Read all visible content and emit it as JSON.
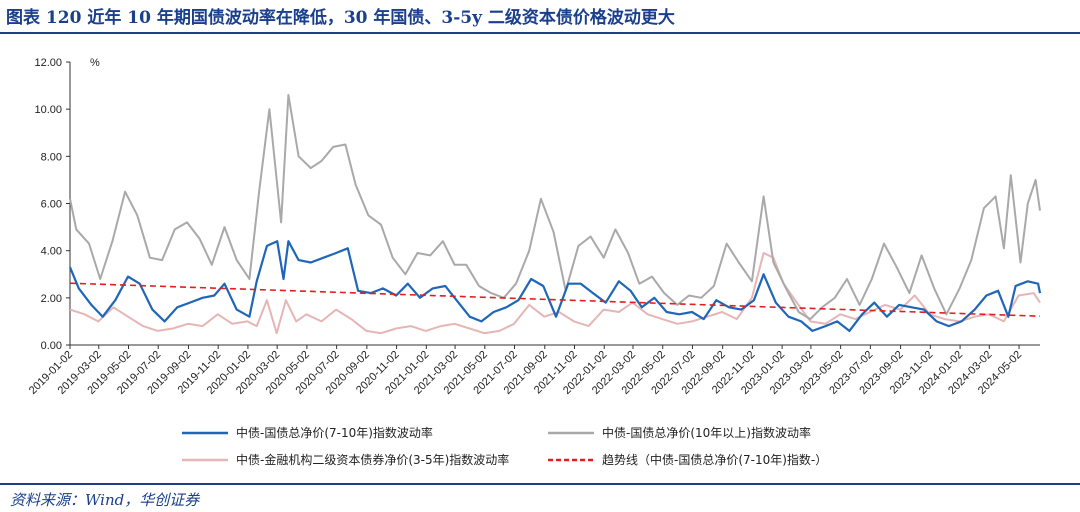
{
  "title": "图表 120    近年 10 年期国债波动率在降低，30 年国债、3-5y 二级资本债价格波动更大",
  "source": "资料来源：Wind，华创证券",
  "colors": {
    "blue": "#1f66b9",
    "gray": "#a9a9a9",
    "pink": "#e6b5b5",
    "trend": "#e02020",
    "accent": "#1f3f86"
  },
  "chart_data": {
    "type": "line",
    "title": "近年 10 年期国债波动率在降低，30 年国债、3-5y 二级资本债价格波动更大",
    "ylabel": "%",
    "ylim": [
      0,
      12
    ],
    "yticks": [
      "0.00",
      "2.00",
      "4.00",
      "6.00",
      "8.00",
      "10.00",
      "12.00"
    ],
    "x_range": [
      "2019-01-02",
      "2024-06-14"
    ],
    "categories": [
      "2019-01-02",
      "2019-03-02",
      "2019-05-02",
      "2019-07-02",
      "2019-09-02",
      "2019-11-02",
      "2020-01-02",
      "2020-03-02",
      "2020-05-02",
      "2020-07-02",
      "2020-09-02",
      "2020-11-02",
      "2021-01-02",
      "2021-03-02",
      "2021-05-02",
      "2021-07-02",
      "2021-09-02",
      "2021-11-02",
      "2022-01-02",
      "2022-03-02",
      "2022-05-02",
      "2022-07-02",
      "2022-09-02",
      "2022-11-02",
      "2023-01-02",
      "2023-03-02",
      "2023-05-02",
      "2023-07-02",
      "2023-09-02",
      "2023-11-02",
      "2024-01-02",
      "2024-03-02",
      "2024-05-02"
    ],
    "legend_position": "bottom",
    "grid": false,
    "series": [
      {
        "name": "中债-国债总净价(7-10年)指数波动率",
        "style": "solid",
        "color": "#1f66b9",
        "points": [
          [
            "2019-01-02",
            3.3
          ],
          [
            "2019-01-20",
            2.4
          ],
          [
            "2019-02-15",
            1.7
          ],
          [
            "2019-03-10",
            1.2
          ],
          [
            "2019-04-05",
            1.9
          ],
          [
            "2019-05-01",
            2.9
          ],
          [
            "2019-05-25",
            2.6
          ],
          [
            "2019-06-20",
            1.5
          ],
          [
            "2019-07-15",
            1.0
          ],
          [
            "2019-08-10",
            1.6
          ],
          [
            "2019-09-05",
            1.8
          ],
          [
            "2019-10-01",
            2.0
          ],
          [
            "2019-10-25",
            2.1
          ],
          [
            "2019-11-15",
            2.6
          ],
          [
            "2019-12-10",
            1.5
          ],
          [
            "2020-01-05",
            1.2
          ],
          [
            "2020-01-20",
            2.7
          ],
          [
            "2020-02-10",
            4.2
          ],
          [
            "2020-03-02",
            4.4
          ],
          [
            "2020-03-15",
            2.8
          ],
          [
            "2020-03-25",
            4.4
          ],
          [
            "2020-04-15",
            3.6
          ],
          [
            "2020-05-10",
            3.5
          ],
          [
            "2020-06-05",
            3.7
          ],
          [
            "2020-07-01",
            3.9
          ],
          [
            "2020-07-25",
            4.1
          ],
          [
            "2020-08-15",
            2.3
          ],
          [
            "2020-09-10",
            2.2
          ],
          [
            "2020-10-05",
            2.4
          ],
          [
            "2020-11-01",
            2.1
          ],
          [
            "2020-11-25",
            2.6
          ],
          [
            "2020-12-20",
            2.0
          ],
          [
            "2021-01-15",
            2.4
          ],
          [
            "2021-02-10",
            2.5
          ],
          [
            "2021-03-05",
            1.9
          ],
          [
            "2021-04-01",
            1.2
          ],
          [
            "2021-04-25",
            1.0
          ],
          [
            "2021-05-20",
            1.4
          ],
          [
            "2021-06-15",
            1.6
          ],
          [
            "2021-07-10",
            1.9
          ],
          [
            "2021-08-05",
            2.8
          ],
          [
            "2021-08-30",
            2.5
          ],
          [
            "2021-09-25",
            1.2
          ],
          [
            "2021-10-20",
            2.6
          ],
          [
            "2021-11-15",
            2.6
          ],
          [
            "2021-12-10",
            2.2
          ],
          [
            "2022-01-05",
            1.8
          ],
          [
            "2022-02-01",
            2.7
          ],
          [
            "2022-02-25",
            2.3
          ],
          [
            "2022-03-20",
            1.6
          ],
          [
            "2022-04-15",
            2.0
          ],
          [
            "2022-05-10",
            1.4
          ],
          [
            "2022-06-05",
            1.3
          ],
          [
            "2022-07-01",
            1.4
          ],
          [
            "2022-07-25",
            1.1
          ],
          [
            "2022-08-20",
            1.9
          ],
          [
            "2022-09-15",
            1.6
          ],
          [
            "2022-10-10",
            1.5
          ],
          [
            "2022-11-05",
            1.9
          ],
          [
            "2022-11-25",
            3.0
          ],
          [
            "2022-12-20",
            1.8
          ],
          [
            "2023-01-15",
            1.2
          ],
          [
            "2023-02-10",
            1.0
          ],
          [
            "2023-03-05",
            0.6
          ],
          [
            "2023-04-01",
            0.8
          ],
          [
            "2023-04-25",
            1.0
          ],
          [
            "2023-05-20",
            0.6
          ],
          [
            "2023-06-15",
            1.3
          ],
          [
            "2023-07-10",
            1.8
          ],
          [
            "2023-08-05",
            1.2
          ],
          [
            "2023-08-30",
            1.7
          ],
          [
            "2023-09-25",
            1.6
          ],
          [
            "2023-10-20",
            1.5
          ],
          [
            "2023-11-15",
            1.0
          ],
          [
            "2023-12-10",
            0.8
          ],
          [
            "2024-01-05",
            1.0
          ],
          [
            "2024-02-01",
            1.5
          ],
          [
            "2024-02-25",
            2.1
          ],
          [
            "2024-03-20",
            2.3
          ],
          [
            "2024-04-10",
            1.2
          ],
          [
            "2024-04-25",
            2.5
          ],
          [
            "2024-05-20",
            2.7
          ],
          [
            "2024-06-10",
            2.6
          ],
          [
            "2024-06-14",
            2.2
          ]
        ]
      },
      {
        "name": "中债-国债总净价(10年以上)指数波动率",
        "style": "solid",
        "color": "#a9a9a9",
        "points": [
          [
            "2019-01-02",
            6.2
          ],
          [
            "2019-01-15",
            4.9
          ],
          [
            "2019-02-10",
            4.3
          ],
          [
            "2019-03-05",
            2.8
          ],
          [
            "2019-03-30",
            4.4
          ],
          [
            "2019-04-25",
            6.5
          ],
          [
            "2019-05-20",
            5.5
          ],
          [
            "2019-06-15",
            3.7
          ],
          [
            "2019-07-10",
            3.6
          ],
          [
            "2019-08-05",
            4.9
          ],
          [
            "2019-08-30",
            5.2
          ],
          [
            "2019-09-25",
            4.5
          ],
          [
            "2019-10-20",
            3.4
          ],
          [
            "2019-11-15",
            5.0
          ],
          [
            "2019-12-10",
            3.6
          ],
          [
            "2020-01-05",
            2.8
          ],
          [
            "2020-01-25",
            6.5
          ],
          [
            "2020-02-15",
            10.0
          ],
          [
            "2020-03-01",
            7.0
          ],
          [
            "2020-03-10",
            5.2
          ],
          [
            "2020-03-25",
            10.6
          ],
          [
            "2020-04-15",
            8.0
          ],
          [
            "2020-05-10",
            7.5
          ],
          [
            "2020-06-01",
            7.8
          ],
          [
            "2020-06-25",
            8.4
          ],
          [
            "2020-07-20",
            8.5
          ],
          [
            "2020-08-10",
            6.8
          ],
          [
            "2020-09-05",
            5.5
          ],
          [
            "2020-10-01",
            5.1
          ],
          [
            "2020-10-25",
            3.7
          ],
          [
            "2020-11-20",
            3.0
          ],
          [
            "2020-12-15",
            3.9
          ],
          [
            "2021-01-10",
            3.8
          ],
          [
            "2021-02-05",
            4.4
          ],
          [
            "2021-03-01",
            3.4
          ],
          [
            "2021-03-25",
            3.4
          ],
          [
            "2021-04-20",
            2.5
          ],
          [
            "2021-05-15",
            2.2
          ],
          [
            "2021-06-10",
            2.0
          ],
          [
            "2021-07-05",
            2.6
          ],
          [
            "2021-08-01",
            4.0
          ],
          [
            "2021-08-25",
            6.2
          ],
          [
            "2021-09-20",
            4.8
          ],
          [
            "2021-10-15",
            2.3
          ],
          [
            "2021-11-10",
            4.2
          ],
          [
            "2021-12-05",
            4.6
          ],
          [
            "2022-01-01",
            3.7
          ],
          [
            "2022-01-25",
            4.9
          ],
          [
            "2022-02-20",
            3.9
          ],
          [
            "2022-03-15",
            2.6
          ],
          [
            "2022-04-10",
            2.9
          ],
          [
            "2022-05-05",
            2.2
          ],
          [
            "2022-06-01",
            1.7
          ],
          [
            "2022-06-25",
            2.1
          ],
          [
            "2022-07-20",
            2.0
          ],
          [
            "2022-08-15",
            2.5
          ],
          [
            "2022-09-10",
            4.3
          ],
          [
            "2022-10-05",
            3.5
          ],
          [
            "2022-11-01",
            2.7
          ],
          [
            "2022-11-25",
            6.3
          ],
          [
            "2022-12-15",
            3.5
          ],
          [
            "2023-01-10",
            2.4
          ],
          [
            "2023-02-05",
            1.4
          ],
          [
            "2023-03-01",
            1.1
          ],
          [
            "2023-03-25",
            1.6
          ],
          [
            "2023-04-20",
            2.0
          ],
          [
            "2023-05-15",
            2.8
          ],
          [
            "2023-06-10",
            1.7
          ],
          [
            "2023-07-05",
            2.8
          ],
          [
            "2023-07-30",
            4.3
          ],
          [
            "2023-08-25",
            3.3
          ],
          [
            "2023-09-20",
            2.2
          ],
          [
            "2023-10-15",
            3.8
          ],
          [
            "2023-11-10",
            2.4
          ],
          [
            "2023-12-05",
            1.3
          ],
          [
            "2024-01-01",
            2.4
          ],
          [
            "2024-01-25",
            3.6
          ],
          [
            "2024-02-20",
            5.8
          ],
          [
            "2024-03-15",
            6.3
          ],
          [
            "2024-04-01",
            4.1
          ],
          [
            "2024-04-15",
            7.2
          ],
          [
            "2024-05-05",
            3.5
          ],
          [
            "2024-05-20",
            6.0
          ],
          [
            "2024-06-05",
            7.0
          ],
          [
            "2024-06-14",
            5.7
          ]
        ]
      },
      {
        "name": "中债-金融机构二级资本债券净价(3-5年)指数波动率",
        "style": "solid",
        "color": "#e6b5b5",
        "points": [
          [
            "2019-01-02",
            1.5
          ],
          [
            "2019-02-01",
            1.3
          ],
          [
            "2019-03-01",
            1.0
          ],
          [
            "2019-04-01",
            1.6
          ],
          [
            "2019-05-01",
            1.2
          ],
          [
            "2019-06-01",
            0.8
          ],
          [
            "2019-07-01",
            0.6
          ],
          [
            "2019-08-01",
            0.7
          ],
          [
            "2019-09-01",
            0.9
          ],
          [
            "2019-10-01",
            0.8
          ],
          [
            "2019-11-01",
            1.3
          ],
          [
            "2019-12-01",
            0.9
          ],
          [
            "2020-01-01",
            1.0
          ],
          [
            "2020-01-20",
            0.8
          ],
          [
            "2020-02-10",
            1.9
          ],
          [
            "2020-03-01",
            0.5
          ],
          [
            "2020-03-20",
            1.9
          ],
          [
            "2020-04-10",
            1.0
          ],
          [
            "2020-05-01",
            1.3
          ],
          [
            "2020-06-01",
            1.0
          ],
          [
            "2020-07-01",
            1.5
          ],
          [
            "2020-08-01",
            1.1
          ],
          [
            "2020-09-01",
            0.6
          ],
          [
            "2020-10-01",
            0.5
          ],
          [
            "2020-11-01",
            0.7
          ],
          [
            "2020-12-01",
            0.8
          ],
          [
            "2021-01-01",
            0.6
          ],
          [
            "2021-02-01",
            0.8
          ],
          [
            "2021-03-01",
            0.9
          ],
          [
            "2021-04-01",
            0.7
          ],
          [
            "2021-05-01",
            0.5
          ],
          [
            "2021-06-01",
            0.6
          ],
          [
            "2021-07-01",
            0.9
          ],
          [
            "2021-08-01",
            1.7
          ],
          [
            "2021-09-01",
            1.2
          ],
          [
            "2021-10-01",
            1.4
          ],
          [
            "2021-11-01",
            1.0
          ],
          [
            "2021-12-01",
            0.8
          ],
          [
            "2022-01-01",
            1.5
          ],
          [
            "2022-02-01",
            1.4
          ],
          [
            "2022-03-01",
            1.8
          ],
          [
            "2022-04-01",
            1.3
          ],
          [
            "2022-05-01",
            1.1
          ],
          [
            "2022-06-01",
            0.9
          ],
          [
            "2022-07-01",
            1.0
          ],
          [
            "2022-08-01",
            1.2
          ],
          [
            "2022-09-01",
            1.4
          ],
          [
            "2022-10-01",
            1.1
          ],
          [
            "2022-11-01",
            2.0
          ],
          [
            "2022-11-25",
            3.9
          ],
          [
            "2022-12-15",
            3.7
          ],
          [
            "2023-01-05",
            2.6
          ],
          [
            "2023-02-01",
            1.8
          ],
          [
            "2023-03-01",
            1.0
          ],
          [
            "2023-04-01",
            0.9
          ],
          [
            "2023-05-01",
            1.3
          ],
          [
            "2023-06-01",
            1.1
          ],
          [
            "2023-07-01",
            1.4
          ],
          [
            "2023-08-01",
            1.7
          ],
          [
            "2023-09-01",
            1.5
          ],
          [
            "2023-10-01",
            2.1
          ],
          [
            "2023-11-01",
            1.3
          ],
          [
            "2023-12-01",
            1.1
          ],
          [
            "2024-01-01",
            1.0
          ],
          [
            "2024-02-01",
            1.2
          ],
          [
            "2024-03-01",
            1.3
          ],
          [
            "2024-04-01",
            1.0
          ],
          [
            "2024-05-01",
            2.1
          ],
          [
            "2024-06-01",
            2.2
          ],
          [
            "2024-06-14",
            1.8
          ]
        ]
      },
      {
        "name": "趋势线（中债-国债总净价(7-10年)指数-）",
        "style": "dashed",
        "color": "#e02020",
        "points": [
          [
            "2019-01-02",
            2.62
          ],
          [
            "2024-06-14",
            1.22
          ]
        ]
      }
    ]
  }
}
